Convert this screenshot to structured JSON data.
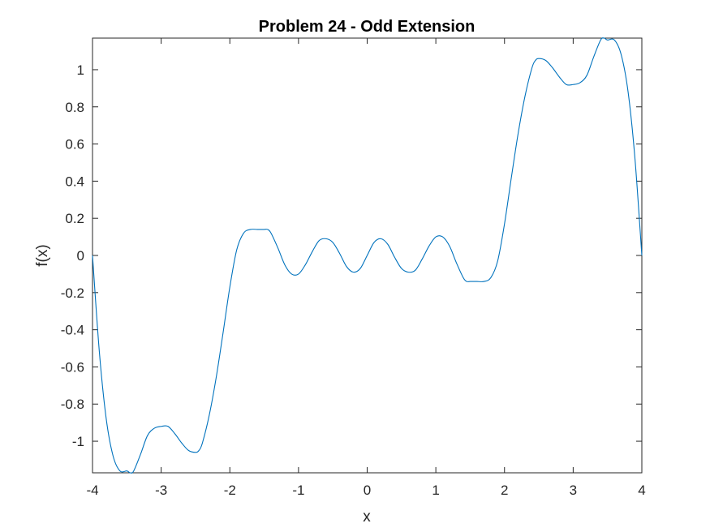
{
  "chart_data": {
    "type": "line",
    "title": "Problem 24 - Odd Extension",
    "xlabel": "x",
    "ylabel": "f(x)",
    "xlim": [
      -4,
      4
    ],
    "ylim": [
      -1.17,
      1.17
    ],
    "grid": false,
    "box": true,
    "xticks": [
      -4,
      -3,
      -2,
      -1,
      0,
      1,
      2,
      3,
      4
    ],
    "xtick_labels": [
      "-4",
      "-3",
      "-2",
      "-1",
      "0",
      "1",
      "2",
      "3",
      "4"
    ],
    "yticks": [
      -1,
      -0.8,
      -0.6,
      -0.4,
      -0.2,
      0,
      0.2,
      0.4,
      0.6,
      0.8,
      1
    ],
    "ytick_labels": [
      "-1",
      "-0.8",
      "-0.6",
      "-0.4",
      "-0.2",
      "0",
      "0.2",
      "0.4",
      "0.6",
      "0.8",
      "1"
    ],
    "line_color": "#0072BD",
    "series": [
      {
        "x": [
          -4.0,
          -3.9,
          -3.8,
          -3.7,
          -3.6,
          -3.5,
          -3.45,
          -3.4,
          -3.3,
          -3.2,
          -3.1,
          -3.0,
          -2.9,
          -2.8,
          -2.7,
          -2.6,
          -2.5,
          -2.45,
          -2.4,
          -2.3,
          -2.2,
          -2.1,
          -2.0,
          -1.9,
          -1.8,
          -1.7,
          -1.6,
          -1.5,
          -1.45,
          -1.4,
          -1.3,
          -1.2,
          -1.1,
          -1.0,
          -0.9,
          -0.8,
          -0.7,
          -0.6,
          -0.5,
          -0.4,
          -0.3,
          -0.2,
          -0.1,
          0.0,
          0.1,
          0.2,
          0.3,
          0.4,
          0.5,
          0.6,
          0.7,
          0.8,
          0.9,
          1.0,
          1.1,
          1.2,
          1.3,
          1.4,
          1.45,
          1.5,
          1.6,
          1.7,
          1.8,
          1.9,
          2.0,
          2.1,
          2.2,
          2.3,
          2.4,
          2.45,
          2.5,
          2.6,
          2.7,
          2.8,
          2.9,
          3.0,
          3.1,
          3.2,
          3.3,
          3.4,
          3.45,
          3.5,
          3.6,
          3.7,
          3.8,
          3.9,
          4.0
        ],
        "y": [
          0.0,
          -0.52,
          -0.88,
          -1.08,
          -1.16,
          -1.16,
          -1.17,
          -1.16,
          -1.07,
          -0.97,
          -0.93,
          -0.92,
          -0.92,
          -0.96,
          -1.01,
          -1.05,
          -1.06,
          -1.05,
          -1.01,
          -0.86,
          -0.66,
          -0.42,
          -0.17,
          0.03,
          0.12,
          0.14,
          0.14,
          0.14,
          0.14,
          0.12,
          0.04,
          -0.05,
          -0.1,
          -0.1,
          -0.05,
          0.02,
          0.08,
          0.09,
          0.07,
          0.01,
          -0.06,
          -0.09,
          -0.07,
          0.0,
          0.07,
          0.09,
          0.06,
          -0.01,
          -0.07,
          -0.09,
          -0.08,
          -0.02,
          0.05,
          0.1,
          0.1,
          0.05,
          -0.04,
          -0.12,
          -0.14,
          -0.14,
          -0.14,
          -0.14,
          -0.12,
          -0.03,
          0.17,
          0.42,
          0.66,
          0.86,
          1.01,
          1.05,
          1.06,
          1.05,
          1.01,
          0.96,
          0.92,
          0.92,
          0.93,
          0.97,
          1.07,
          1.16,
          1.17,
          1.16,
          1.16,
          1.08,
          0.88,
          0.52,
          0.0
        ]
      }
    ]
  }
}
